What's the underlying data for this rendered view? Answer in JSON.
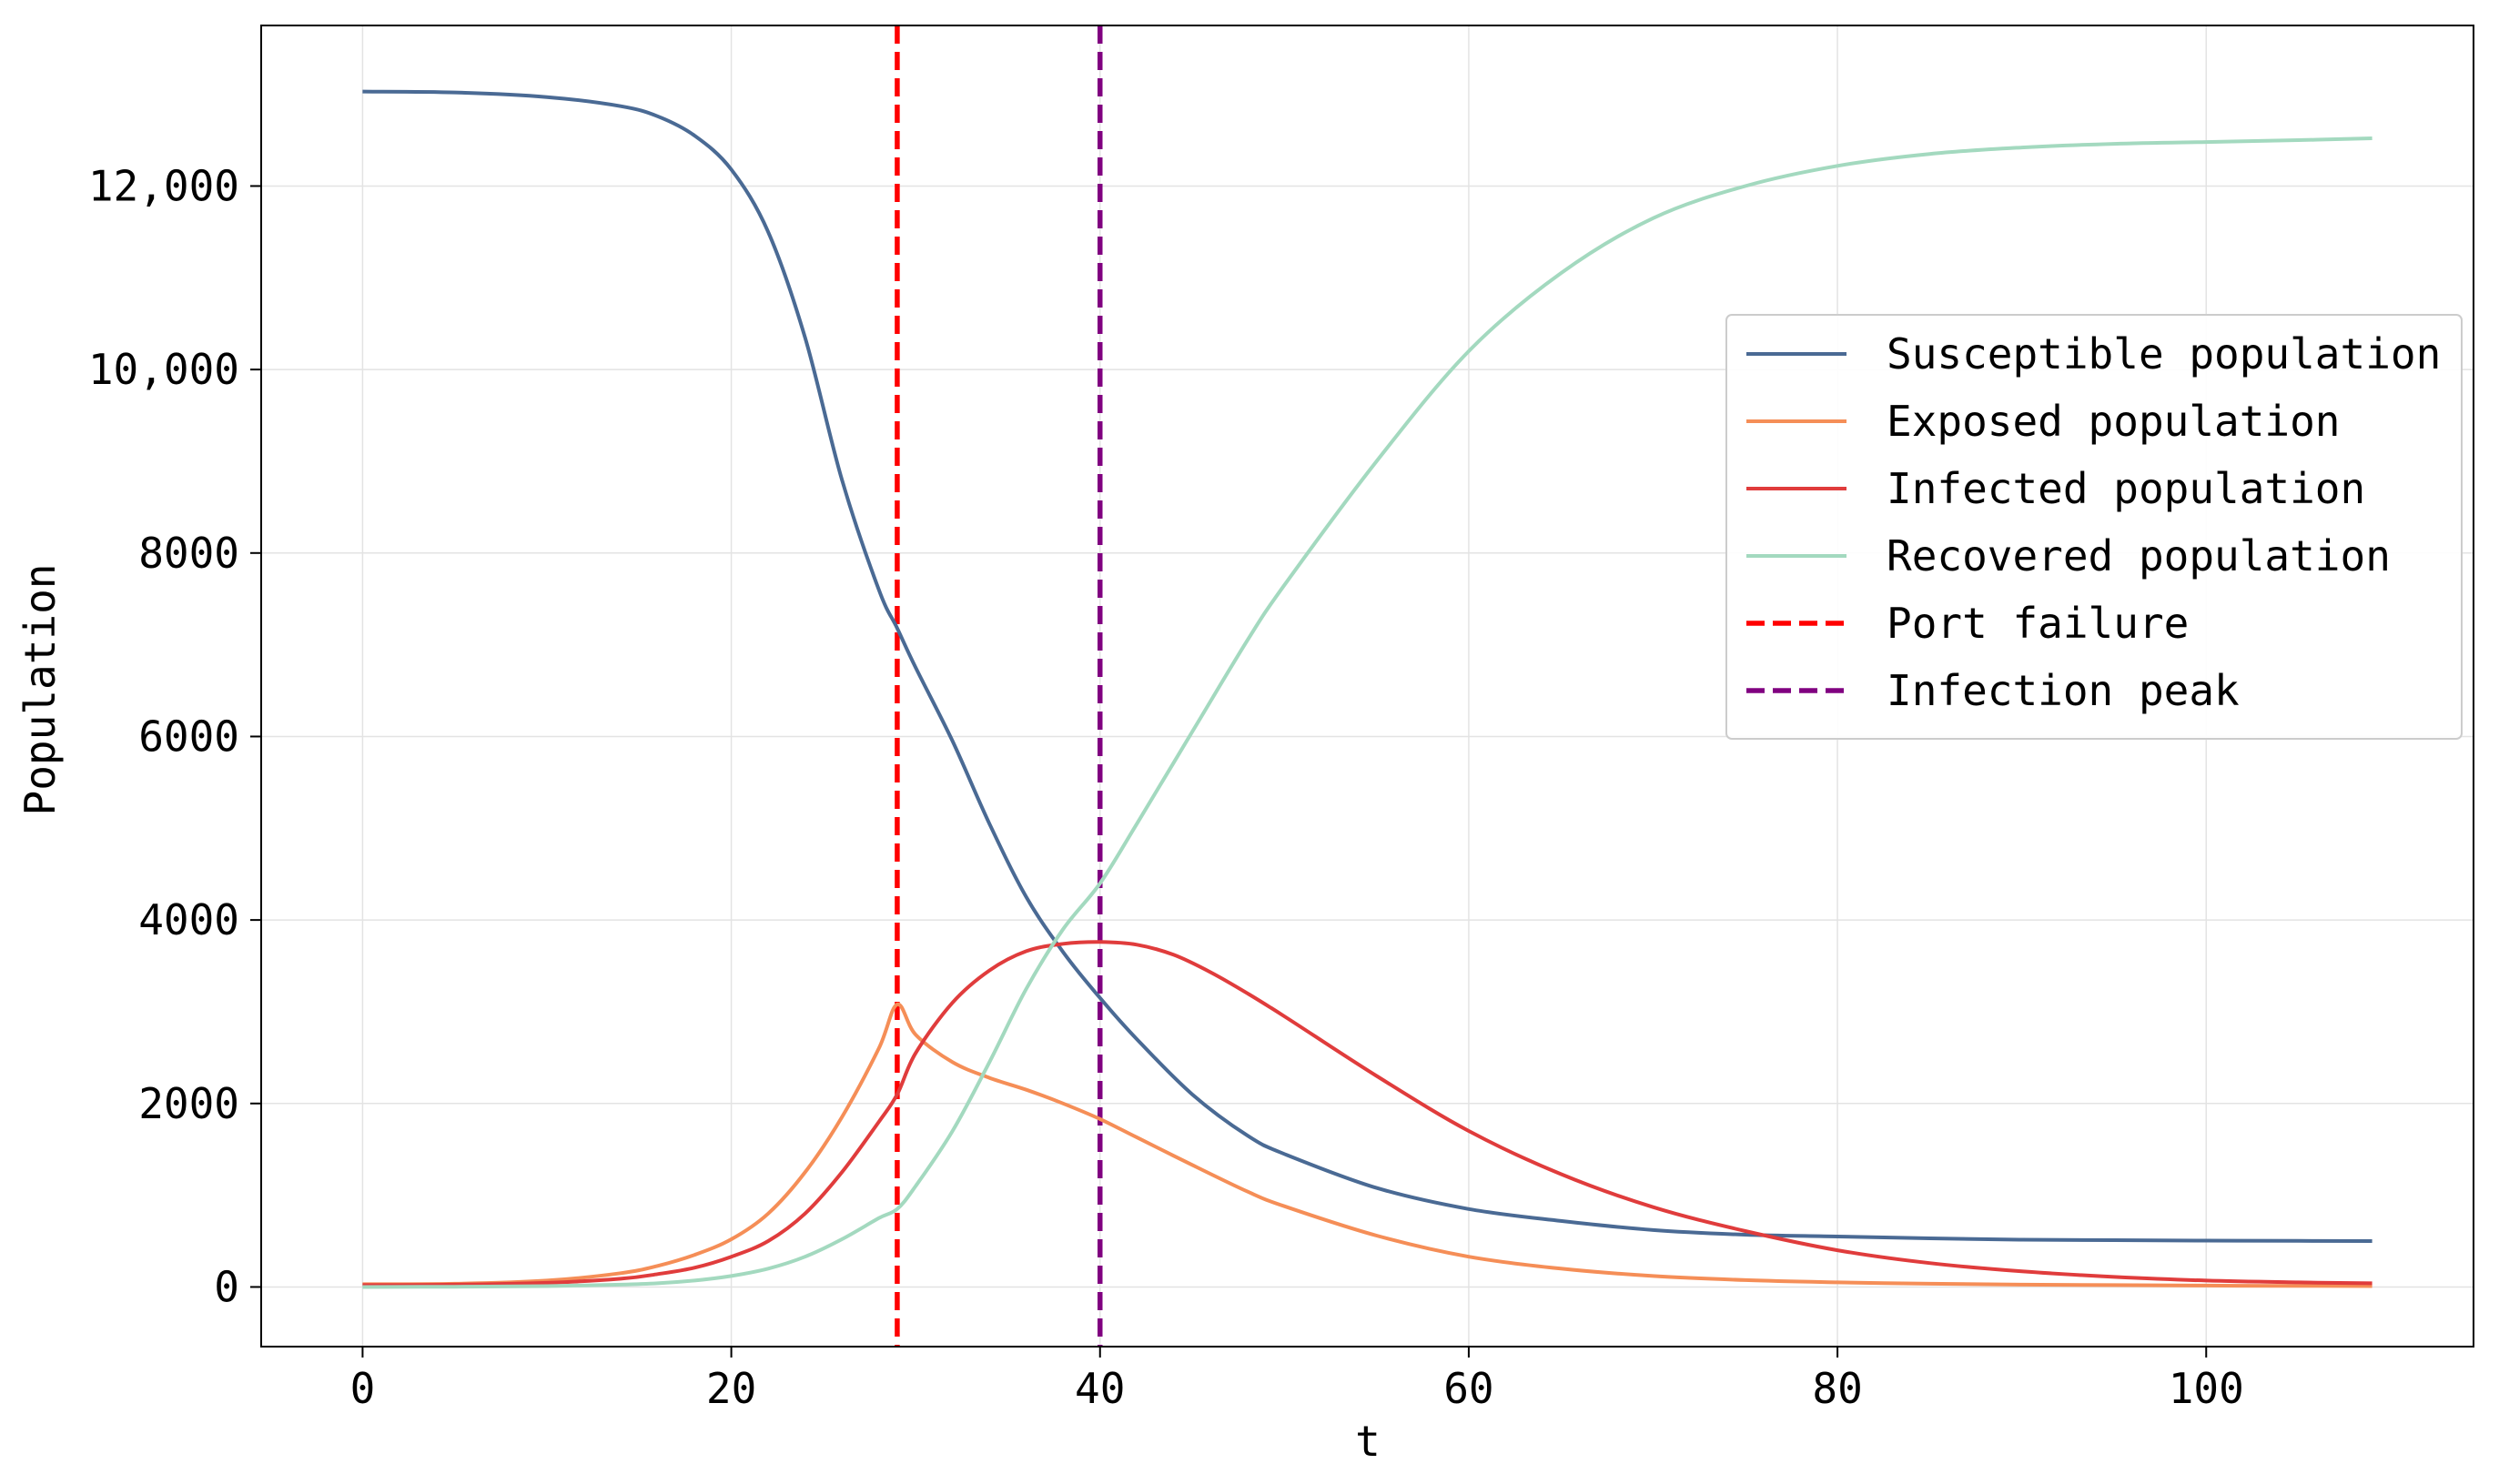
{
  "chart_data": {
    "type": "line",
    "title": "",
    "xlabel": "t",
    "ylabel": "Population",
    "xlim": [
      -5.5,
      114.5
    ],
    "ylim": [
      -650,
      13750
    ],
    "grid": true,
    "legend_position": "right",
    "x_ticks": [
      0,
      20,
      40,
      60,
      80,
      100
    ],
    "x_tick_labels": [
      "0",
      "20",
      "40",
      "60",
      "80",
      "100"
    ],
    "y_ticks": [
      0,
      2000,
      4000,
      6000,
      8000,
      10000,
      12000
    ],
    "y_tick_labels": [
      "0",
      "2000",
      "4000",
      "6000",
      "8000",
      "10,000",
      "12,000"
    ],
    "series": [
      {
        "name": "Susceptible population",
        "color": "#4a6a94",
        "x": [
          0,
          5,
          10,
          14,
          16,
          18,
          20,
          22,
          24,
          26,
          28,
          29,
          30,
          32,
          34,
          36,
          38,
          40,
          42,
          45,
          48,
          50,
          55,
          60,
          65,
          70,
          75,
          80,
          85,
          90,
          95,
          100,
          105,
          109
        ],
        "y": [
          13030,
          13020,
          12970,
          12870,
          12760,
          12550,
          12180,
          11500,
          10350,
          8800,
          7600,
          7180,
          6750,
          5950,
          5050,
          4250,
          3650,
          3150,
          2700,
          2100,
          1650,
          1450,
          1080,
          850,
          720,
          620,
          570,
          550,
          530,
          515,
          510,
          505,
          502,
          500
        ]
      },
      {
        "name": "Exposed population",
        "color": "#f58e57",
        "x": [
          0,
          5,
          10,
          14,
          16,
          18,
          20,
          22,
          24,
          26,
          28,
          29,
          30,
          32,
          34,
          36,
          38,
          40,
          42,
          45,
          48,
          50,
          55,
          60,
          65,
          70,
          75,
          80,
          85,
          90,
          95,
          100,
          105,
          109
        ],
        "y": [
          30,
          35,
          70,
          150,
          230,
          350,
          520,
          800,
          1250,
          1850,
          2600,
          3080,
          2750,
          2450,
          2280,
          2150,
          2000,
          1830,
          1630,
          1330,
          1040,
          880,
          560,
          330,
          200,
          120,
          75,
          50,
          35,
          25,
          20,
          15,
          12,
          10
        ]
      },
      {
        "name": "Infected population",
        "color": "#e03c3c",
        "x": [
          0,
          5,
          10,
          14,
          16,
          18,
          20,
          22,
          24,
          26,
          28,
          29,
          30,
          32,
          34,
          36,
          38,
          40,
          42,
          44,
          46,
          48,
          50,
          55,
          60,
          65,
          70,
          75,
          80,
          85,
          90,
          95,
          100,
          105,
          109
        ],
        "y": [
          20,
          25,
          45,
          90,
          140,
          210,
          330,
          500,
          800,
          1250,
          1800,
          2100,
          2550,
          3100,
          3450,
          3660,
          3740,
          3760,
          3730,
          3620,
          3430,
          3200,
          2950,
          2300,
          1700,
          1230,
          870,
          610,
          400,
          260,
          170,
          110,
          70,
          50,
          40
        ]
      },
      {
        "name": "Recovered population",
        "color": "#a3d9bf",
        "x": [
          0,
          5,
          10,
          14,
          16,
          18,
          20,
          22,
          24,
          26,
          28,
          29,
          30,
          32,
          34,
          36,
          38,
          40,
          42,
          45,
          48,
          50,
          55,
          60,
          65,
          70,
          75,
          80,
          85,
          90,
          95,
          100,
          105,
          109
        ],
        "y": [
          0,
          3,
          10,
          25,
          40,
          70,
          120,
          200,
          330,
          520,
          750,
          850,
          1100,
          1700,
          2450,
          3250,
          3900,
          4400,
          5050,
          6050,
          7050,
          7650,
          9000,
          10200,
          11050,
          11650,
          12000,
          12220,
          12350,
          12420,
          12460,
          12480,
          12500,
          12520
        ]
      }
    ],
    "reference_lines": [
      {
        "name": "Port failure",
        "x": 29,
        "color": "#ff0000"
      },
      {
        "name": "Infection peak",
        "x": 40,
        "color": "#800080"
      }
    ]
  }
}
